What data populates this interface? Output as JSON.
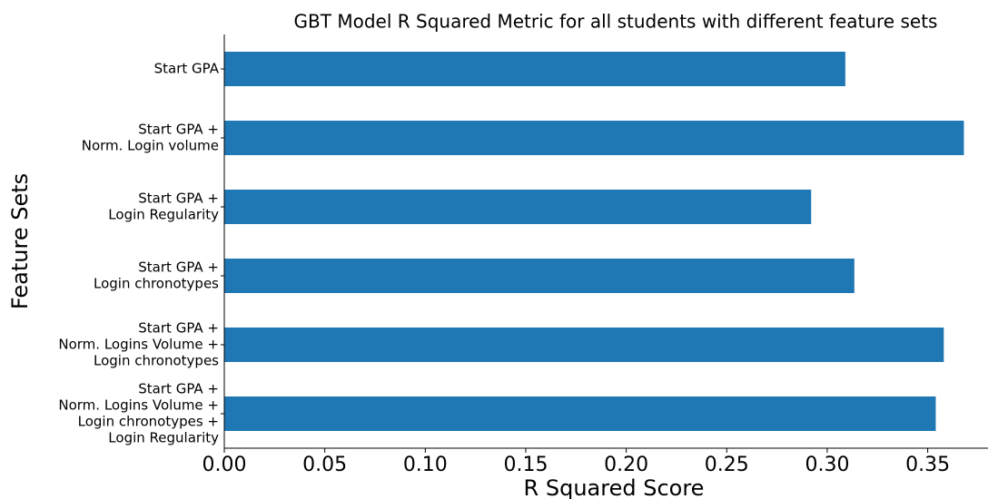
{
  "chart_data": {
    "type": "barh",
    "title": "GBT Model R Squared Metric for all students with different feature sets",
    "x_label": "R Squared Score",
    "y_label": "Feature Sets",
    "categories": [
      [
        "Start GPA"
      ],
      [
        "Start GPA +",
        "Norm. Login volume"
      ],
      [
        "Start GPA +",
        "Login Regularity"
      ],
      [
        "Start GPA +",
        "Login chronotypes"
      ],
      [
        "Start GPA +",
        "Norm. Logins Volume +",
        "Login chronotypes"
      ],
      [
        "Start GPA +",
        "Norm. Logins Volume +",
        "Login chronotypes +",
        "Login Regularity"
      ]
    ],
    "values": [
      0.309,
      0.368,
      0.292,
      0.3135,
      0.358,
      0.354
    ],
    "color": "#1f77b4",
    "xlim": [
      0,
      0.38
    ],
    "xticks": [
      {
        "value": 0,
        "label": "0.00"
      },
      {
        "value": 0.05,
        "label": "0.05"
      },
      {
        "value": 0.1,
        "label": "0.10"
      },
      {
        "value": 0.15,
        "label": "0.15"
      },
      {
        "value": 0.2,
        "label": "0.20"
      },
      {
        "value": 0.25,
        "label": "0.25"
      },
      {
        "value": 0.3,
        "label": "0.30"
      },
      {
        "value": 0.35,
        "label": "0.35"
      }
    ]
  }
}
